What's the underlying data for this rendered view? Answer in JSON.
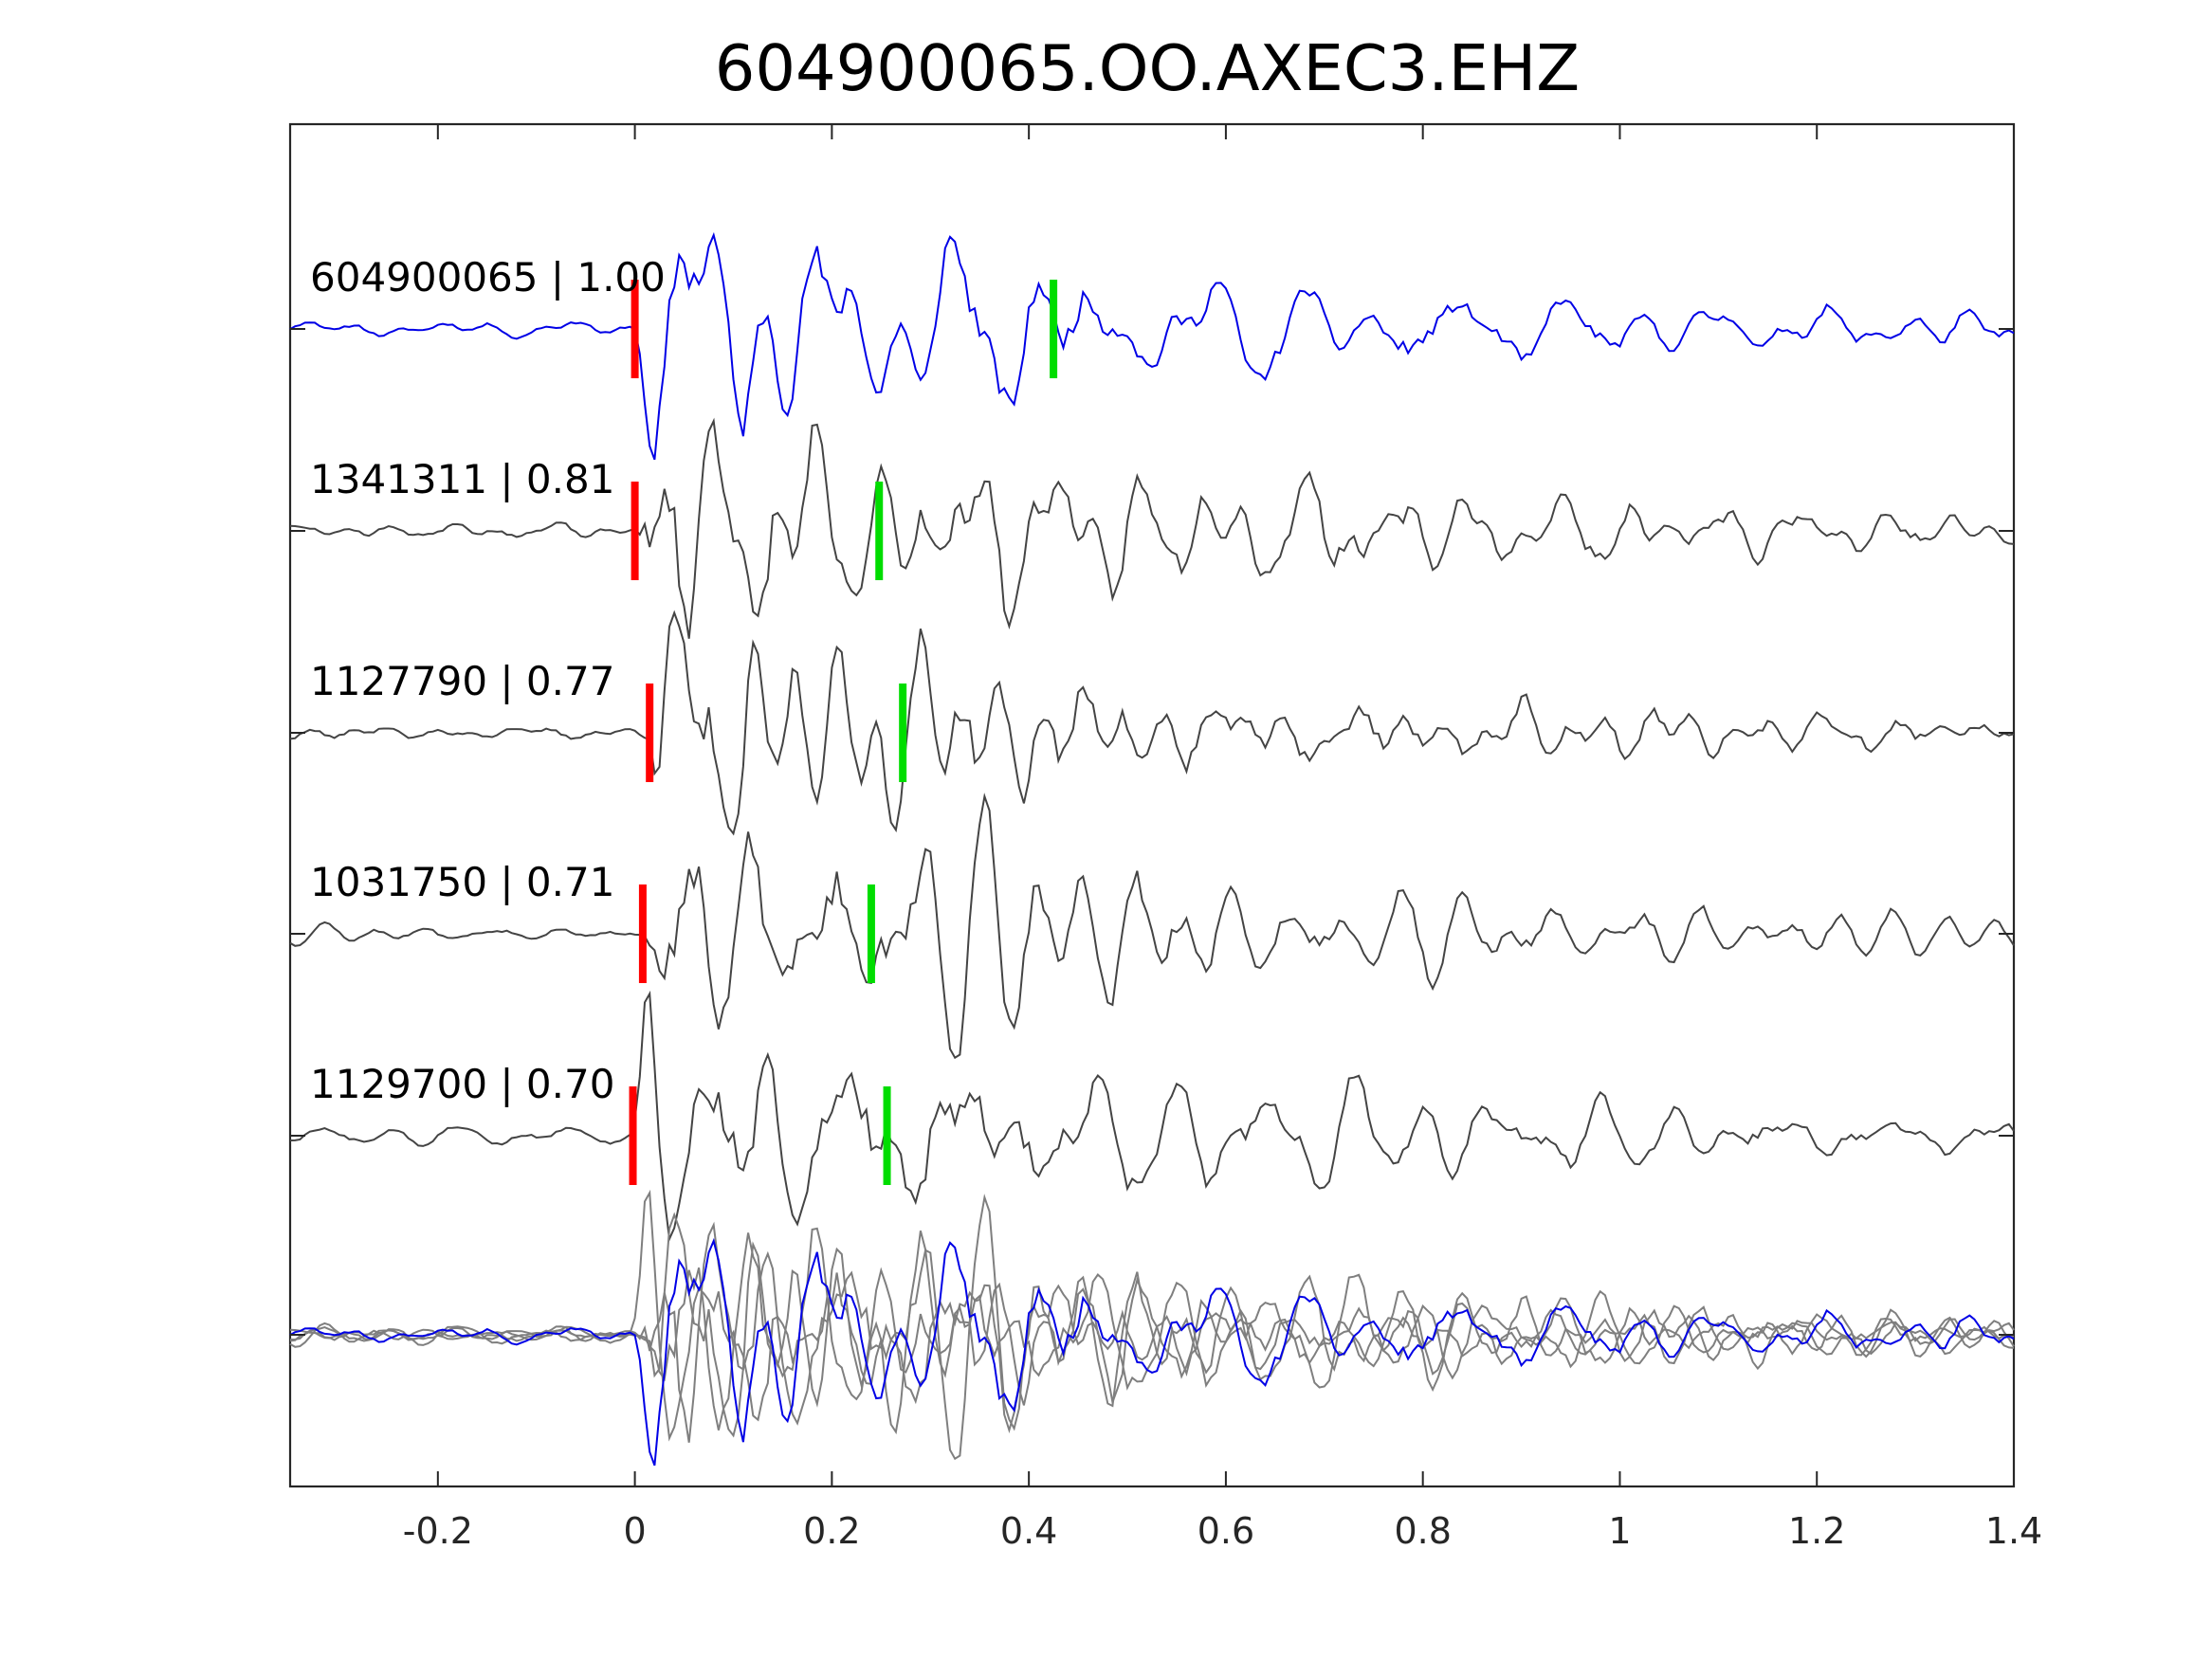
{
  "chart_data": {
    "type": "line",
    "title": "604900065.OO.AXEC3.EHZ",
    "xlabel": "",
    "ylabel": "",
    "xlim": [
      -0.35,
      1.4
    ],
    "xticks": [
      -0.2,
      0,
      0.2,
      0.4,
      0.6,
      0.8,
      1,
      1.2,
      1.4
    ],
    "xtick_labels": [
      "-0.2",
      "0",
      "0.2",
      "0.4",
      "0.6",
      "0.8",
      "1",
      "1.2",
      "1.4"
    ],
    "grid": false,
    "colors": {
      "main_trace": "#0000e6",
      "other_trace": "#444444",
      "overlay_other": "#7f7f7f",
      "p_pick": "#ff0000",
      "s_pick": "#00dd00"
    },
    "traces": [
      {
        "label": "604900065 | 1.00",
        "event_id": "604900065",
        "correlation": 1.0,
        "p_pick": 0.0,
        "s_pick": 0.425,
        "seed": 11,
        "color": "#0000e6"
      },
      {
        "label": "1341311 | 0.81",
        "event_id": "1341311",
        "correlation": 0.81,
        "p_pick": 0.0,
        "s_pick": 0.248,
        "seed": 23,
        "color": "#444444"
      },
      {
        "label": "1127790 | 0.77",
        "event_id": "1127790",
        "correlation": 0.77,
        "p_pick": 0.015,
        "s_pick": 0.272,
        "seed": 37,
        "color": "#444444"
      },
      {
        "label": "1031750 | 0.71",
        "event_id": "1031750",
        "correlation": 0.71,
        "p_pick": 0.008,
        "s_pick": 0.24,
        "seed": 51,
        "color": "#444444"
      },
      {
        "label": "1129700 | 0.70",
        "event_id": "1129700",
        "correlation": 0.7,
        "p_pick": -0.002,
        "s_pick": 0.256,
        "seed": 67,
        "color": "#444444"
      }
    ],
    "overlay": {
      "description": "all traces superimposed",
      "order": "others then main"
    }
  }
}
